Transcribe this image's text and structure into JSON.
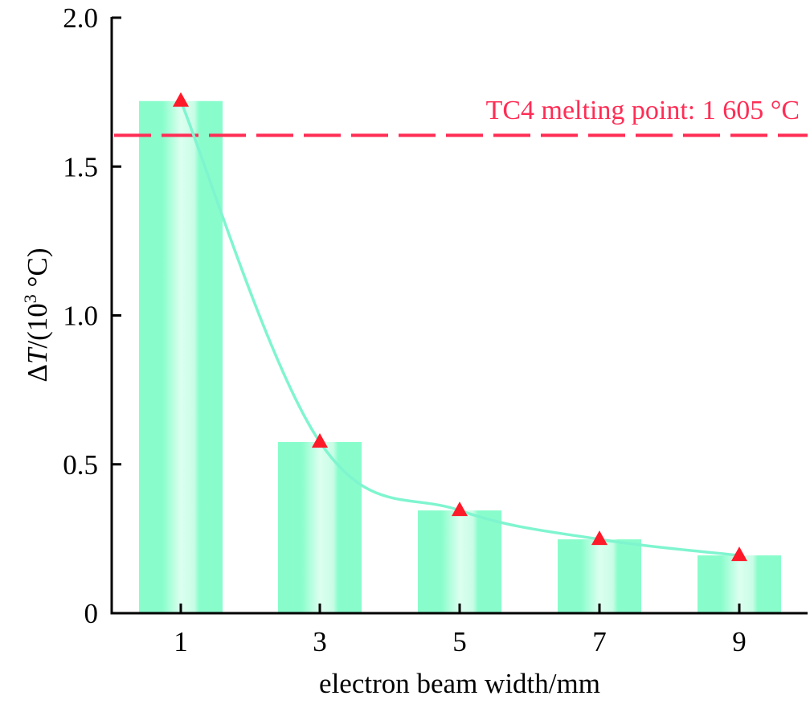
{
  "chart_data": {
    "type": "bar",
    "title": "",
    "xlabel": "electron beam width/mm",
    "ylabel_prefix": "Δ",
    "ylabel_var": "T",
    "ylabel_mid": "/(10",
    "ylabel_sup": "3",
    "ylabel_suffix": " °C)",
    "categories": [
      "1",
      "3",
      "5",
      "7",
      "9"
    ],
    "values": [
      1.72,
      0.575,
      0.345,
      0.248,
      0.194
    ],
    "ylim": [
      0,
      2.0
    ],
    "yticks": [
      0,
      0.5,
      1.0,
      1.5,
      2.0
    ],
    "ytick_labels": [
      "0",
      "0.5",
      "1.0",
      "1.5",
      "2.0"
    ],
    "reference_line": {
      "value": 1.605,
      "label": "TC4 melting point: 1 605 °C",
      "color": "#ff2d55"
    },
    "series": [
      {
        "name": "ΔT",
        "values": [
          1.72,
          0.575,
          0.345,
          0.248,
          0.194
        ],
        "marker": "triangle",
        "marker_color": "#ff1a2a",
        "line_color": "#7ff5cf"
      }
    ],
    "bar_color": "#88ffcc",
    "grid": false
  }
}
